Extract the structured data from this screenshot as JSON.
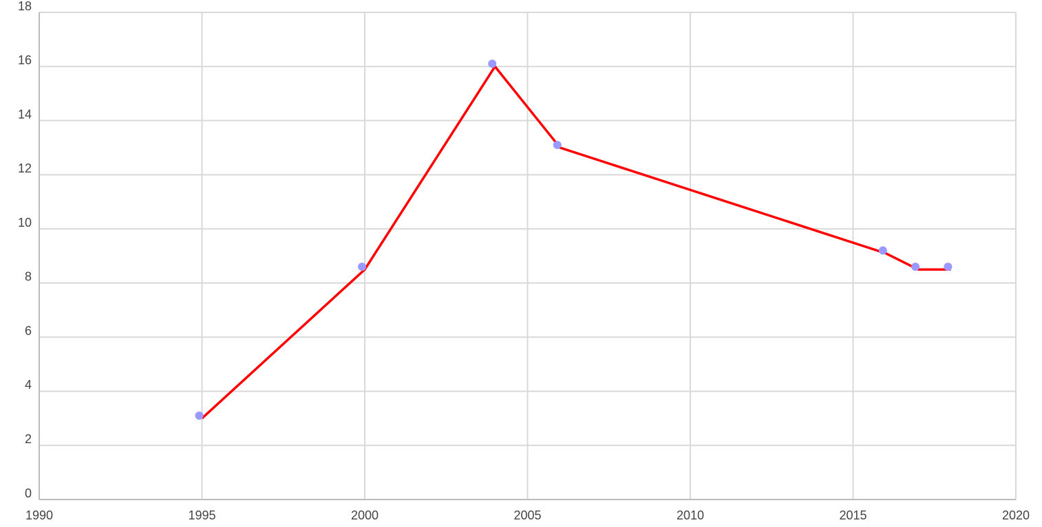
{
  "chart_data": {
    "type": "line",
    "x": [
      1995,
      2000,
      2004,
      2006,
      2016,
      2017,
      2018
    ],
    "series": [
      {
        "color": "#ff0000",
        "marker_color": "#9999ff",
        "values": [
          3,
          8.5,
          16,
          13,
          9.1,
          8.5,
          8.5
        ]
      }
    ],
    "xlim": [
      1990,
      2020
    ],
    "xticks": [
      1990,
      1995,
      2000,
      2005,
      2010,
      2015,
      2020
    ],
    "ylim": [
      0,
      18
    ],
    "yticks": [
      0,
      2,
      4,
      6,
      8,
      10,
      12,
      14,
      16,
      18
    ],
    "grid": true
  }
}
